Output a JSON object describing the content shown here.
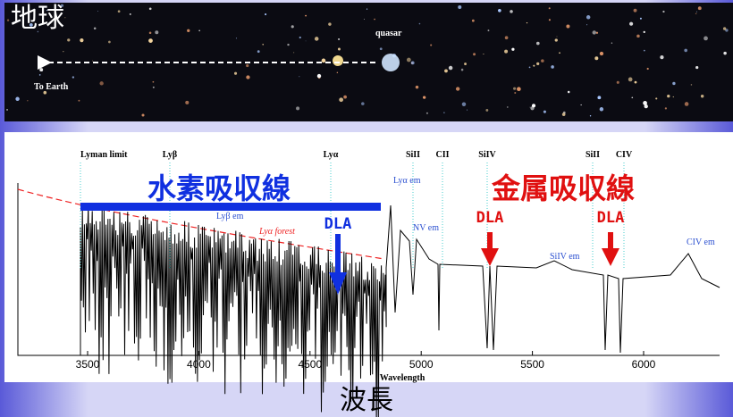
{
  "image": {
    "earth_label": "地球",
    "quasar_label": "quasar",
    "to_earth_label": "To Earth"
  },
  "spectrum": {
    "lines": [
      "Lyman limit",
      "Lyβ",
      "Lyα",
      "SiII",
      "CII",
      "SiIV",
      "SiII",
      "CIV"
    ],
    "emission": [
      "Lyα em",
      "Lyβ em",
      "NV em",
      "SiIV em",
      "CIV em"
    ],
    "forest_label": "Lyα forest",
    "x_ticks": [
      "3500",
      "4000",
      "4500",
      "5000",
      "5500",
      "6000"
    ],
    "x_axis_label": "Wavelength"
  },
  "annotations": {
    "hydrogen": "水素吸収線",
    "metal": "金属吸収線",
    "dla_blue": "DLA",
    "dla_red_1": "DLA",
    "dla_red_2": "DLA",
    "wavelength_jp": "波長"
  }
}
